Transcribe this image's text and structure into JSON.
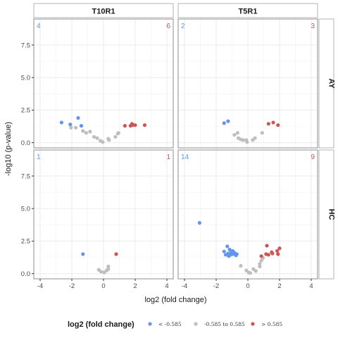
{
  "chart_data": {
    "type": "scatter",
    "xlabel": "log2 (fold change)",
    "ylabel": "-log10 (p-value)",
    "xlim": [
      -4.4,
      4.4
    ],
    "ylim": [
      -0.4,
      9.5
    ],
    "xticks": [
      -4,
      -2,
      0,
      2,
      4
    ],
    "yticks": [
      0.0,
      2.5,
      5.0,
      7.5
    ],
    "xtick_labels": [
      "-4",
      "-2",
      "0",
      "2",
      "4"
    ],
    "ytick_labels": [
      "0.0",
      "2.5",
      "5.0",
      "7.5"
    ],
    "grid": true,
    "legend": {
      "position": "bottom",
      "title": "log2 (fold change)",
      "entries": [
        {
          "label": "< -0.585",
          "color": "#6495ED"
        },
        {
          "label": "-0.585 to 0.585",
          "color": "#BEBEBE"
        },
        {
          "label": "> 0.585",
          "color": "#CD5555"
        }
      ]
    },
    "colors": {
      "down": "#6495ED",
      "neutral": "#BEBEBE",
      "up": "#CD5555"
    },
    "col_labels": [
      "T10R1",
      "T5R1"
    ],
    "row_labels": [
      "AY",
      "HC"
    ],
    "panels": [
      {
        "col": "T10R1",
        "row": "AY",
        "down_count": "4",
        "up_count": "6",
        "down": [
          [
            -2.65,
            1.55
          ],
          [
            -2.1,
            1.4
          ],
          [
            -1.6,
            1.9
          ],
          [
            -1.4,
            1.3
          ]
        ],
        "up": [
          [
            1.35,
            1.3
          ],
          [
            1.7,
            1.3
          ],
          [
            1.8,
            1.45
          ],
          [
            1.85,
            1.35
          ],
          [
            2.0,
            1.35
          ],
          [
            2.6,
            1.35
          ]
        ],
        "neutral": [
          [
            -2.05,
            1.15
          ],
          [
            -1.75,
            1.15
          ],
          [
            -1.3,
            0.9
          ],
          [
            -1.1,
            0.75
          ],
          [
            -0.85,
            0.85
          ],
          [
            -0.6,
            0.45
          ],
          [
            -0.4,
            0.35
          ],
          [
            -0.2,
            0.15
          ],
          [
            -0.05,
            0.05
          ],
          [
            0.3,
            0.3
          ],
          [
            0.35,
            0.2
          ],
          [
            0.75,
            0.45
          ],
          [
            0.9,
            0.7
          ],
          [
            0.95,
            0.75
          ]
        ]
      },
      {
        "col": "T5R1",
        "row": "AY",
        "down_count": "2",
        "up_count": "3",
        "down": [
          [
            -1.5,
            1.5
          ],
          [
            -1.25,
            1.65
          ]
        ],
        "up": [
          [
            1.3,
            1.45
          ],
          [
            1.6,
            1.55
          ],
          [
            1.9,
            1.35
          ]
        ],
        "neutral": [
          [
            -0.85,
            0.6
          ],
          [
            -0.65,
            0.75
          ],
          [
            -0.6,
            0.35
          ],
          [
            -0.45,
            0.25
          ],
          [
            -0.3,
            0.2
          ],
          [
            -0.1,
            0.2
          ],
          [
            -0.05,
            0.05
          ],
          [
            0.3,
            0.2
          ],
          [
            0.45,
            0.35
          ],
          [
            0.9,
            0.75
          ]
        ]
      },
      {
        "col": "T10R1",
        "row": "HC",
        "down_count": "1",
        "up_count": "1",
        "down": [
          [
            -1.3,
            1.5
          ]
        ],
        "up": [
          [
            0.8,
            1.5
          ]
        ],
        "neutral": [
          [
            -0.3,
            0.3
          ],
          [
            -0.15,
            0.15
          ],
          [
            0.05,
            0.1
          ],
          [
            0.2,
            0.25
          ],
          [
            0.3,
            0.35
          ],
          [
            0.3,
            0.55
          ]
        ]
      },
      {
        "col": "T5R1",
        "row": "HC",
        "down_count": "14",
        "up_count": "9",
        "down": [
          [
            -3.05,
            3.9
          ],
          [
            -1.5,
            1.7
          ],
          [
            -1.4,
            1.45
          ],
          [
            -1.3,
            2.1
          ],
          [
            -1.25,
            1.55
          ],
          [
            -1.15,
            1.85
          ],
          [
            -1.1,
            1.45
          ],
          [
            -1.05,
            1.65
          ],
          [
            -0.95,
            1.75
          ],
          [
            -0.95,
            1.5
          ],
          [
            -0.85,
            1.6
          ],
          [
            -0.75,
            1.4
          ],
          [
            -0.7,
            1.5
          ],
          [
            -1.2,
            1.35
          ]
        ],
        "up": [
          [
            0.85,
            1.35
          ],
          [
            1.15,
            1.5
          ],
          [
            1.2,
            2.15
          ],
          [
            1.3,
            1.45
          ],
          [
            1.5,
            1.65
          ],
          [
            1.55,
            1.55
          ],
          [
            1.85,
            1.75
          ],
          [
            1.9,
            1.5
          ],
          [
            2.0,
            1.95
          ]
        ],
        "neutral": [
          [
            -0.45,
            0.6
          ],
          [
            -0.1,
            0.25
          ],
          [
            0.05,
            0.1
          ],
          [
            0.15,
            0.05
          ],
          [
            0.35,
            0.35
          ],
          [
            0.5,
            0.2
          ],
          [
            0.75,
            0.55
          ],
          [
            0.75,
            0.75
          ],
          [
            0.85,
            1.0
          ],
          [
            0.95,
            1.2
          ]
        ]
      }
    ]
  }
}
